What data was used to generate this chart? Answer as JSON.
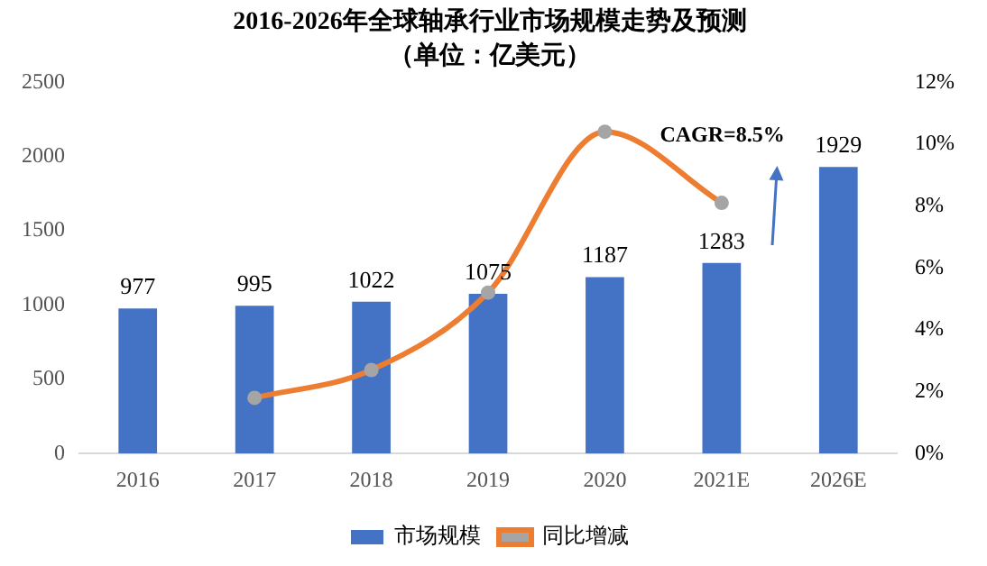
{
  "chart_data": {
    "type": "bar",
    "title": "2016-2026年全球轴承行业市场规模走势及预测",
    "subtitle": "（单位：亿美元）",
    "categories": [
      "2016",
      "2017",
      "2018",
      "2019",
      "2020",
      "2021E",
      "2026E"
    ],
    "series": [
      {
        "name": "市场规模",
        "color": "#4472c4",
        "values": [
          977,
          995,
          1022,
          1075,
          1187,
          1283,
          1929
        ],
        "value_labels": [
          "977",
          "995",
          "1022",
          "1075",
          "1187",
          "1283",
          "1929"
        ]
      },
      {
        "name": "同比增减",
        "type": "line",
        "axis": "y2",
        "color": "#ed7d31",
        "values": [
          null,
          1.8,
          2.7,
          5.2,
          10.4,
          8.1,
          null
        ]
      }
    ],
    "ylim": [
      0,
      2500
    ],
    "yticks": [
      0,
      500,
      1000,
      1500,
      2000,
      2500
    ],
    "y2lim": [
      0,
      12
    ],
    "y2ticks": [
      {
        "value": 0,
        "label": "0%"
      },
      {
        "value": 2,
        "label": "2%"
      },
      {
        "value": 4,
        "label": "4%"
      },
      {
        "value": 6,
        "label": "6%"
      },
      {
        "value": 8,
        "label": "8%"
      },
      {
        "value": 10,
        "label": "10%"
      },
      {
        "value": 12,
        "label": "12%"
      }
    ],
    "annotations": [
      "CAGR=8.5%"
    ],
    "grid": false,
    "legend": "bottom",
    "marker": "circle",
    "line_style": "solid"
  }
}
